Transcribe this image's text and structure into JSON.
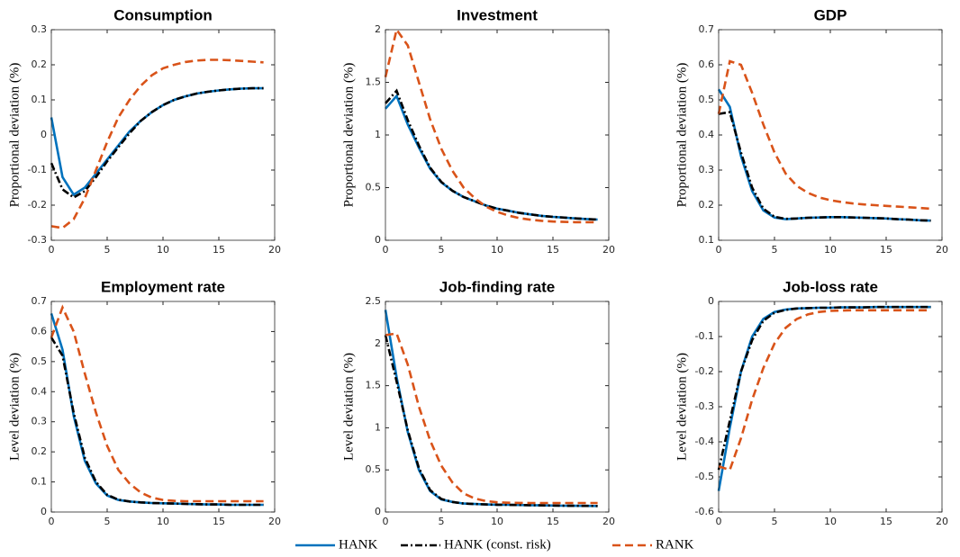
{
  "chart_data": [
    {
      "type": "line",
      "title": "Consumption",
      "ylabel": "Proportional deviation (%)",
      "x": [
        0,
        1,
        2,
        3,
        4,
        5,
        6,
        7,
        8,
        9,
        10,
        11,
        12,
        13,
        14,
        15,
        16,
        17,
        18,
        19
      ],
      "xlim": [
        0,
        20
      ],
      "xticks": [
        0,
        5,
        10,
        15,
        20
      ],
      "ylim": [
        -0.3,
        0.3
      ],
      "yticks": [
        -0.3,
        -0.2,
        -0.1,
        0,
        0.1,
        0.2,
        0.3
      ],
      "series": [
        {
          "name": "HANK",
          "color": "#0072bd",
          "dash": "solid",
          "values": [
            0.05,
            -0.12,
            -0.17,
            -0.15,
            -0.11,
            -0.07,
            -0.03,
            0.01,
            0.04,
            0.065,
            0.085,
            0.1,
            0.11,
            0.118,
            0.123,
            0.127,
            0.13,
            0.132,
            0.133,
            0.133
          ]
        },
        {
          "name": "HANK (const. risk)",
          "color": "#000000",
          "dash": "dashdot",
          "values": [
            -0.08,
            -0.155,
            -0.178,
            -0.16,
            -0.12,
            -0.075,
            -0.035,
            0.005,
            0.04,
            0.065,
            0.085,
            0.1,
            0.11,
            0.118,
            0.123,
            0.127,
            0.13,
            0.132,
            0.133,
            0.133
          ]
        },
        {
          "name": "RANK",
          "color": "#d95319",
          "dash": "dashed",
          "values": [
            -0.26,
            -0.265,
            -0.24,
            -0.18,
            -0.1,
            -0.02,
            0.05,
            0.1,
            0.14,
            0.17,
            0.19,
            0.2,
            0.208,
            0.212,
            0.214,
            0.214,
            0.213,
            0.211,
            0.209,
            0.207
          ]
        }
      ]
    },
    {
      "type": "line",
      "title": "Investment",
      "ylabel": "Proportional deviation (%)",
      "x": [
        0,
        1,
        2,
        3,
        4,
        5,
        6,
        7,
        8,
        9,
        10,
        11,
        12,
        13,
        14,
        15,
        16,
        17,
        18,
        19
      ],
      "xlim": [
        0,
        20
      ],
      "xticks": [
        0,
        5,
        10,
        15,
        20
      ],
      "ylim": [
        0,
        2
      ],
      "yticks": [
        0,
        0.5,
        1,
        1.5,
        2
      ],
      "series": [
        {
          "name": "HANK",
          "color": "#0072bd",
          "dash": "solid",
          "values": [
            1.25,
            1.37,
            1.1,
            0.88,
            0.68,
            0.55,
            0.47,
            0.41,
            0.37,
            0.33,
            0.3,
            0.28,
            0.26,
            0.245,
            0.232,
            0.222,
            0.215,
            0.208,
            0.202,
            0.197
          ]
        },
        {
          "name": "HANK (const. risk)",
          "color": "#000000",
          "dash": "dashdot",
          "values": [
            1.3,
            1.42,
            1.14,
            0.9,
            0.69,
            0.555,
            0.47,
            0.41,
            0.37,
            0.33,
            0.3,
            0.28,
            0.26,
            0.245,
            0.232,
            0.222,
            0.215,
            0.208,
            0.202,
            0.197
          ]
        },
        {
          "name": "RANK",
          "color": "#d95319",
          "dash": "dashed",
          "values": [
            1.55,
            2.0,
            1.85,
            1.5,
            1.15,
            0.87,
            0.66,
            0.5,
            0.4,
            0.32,
            0.27,
            0.235,
            0.21,
            0.195,
            0.185,
            0.178,
            0.174,
            0.172,
            0.172,
            0.172
          ]
        }
      ]
    },
    {
      "type": "line",
      "title": "GDP",
      "ylabel": "Proportional deviation (%)",
      "x": [
        0,
        1,
        2,
        3,
        4,
        5,
        6,
        7,
        8,
        9,
        10,
        11,
        12,
        13,
        14,
        15,
        16,
        17,
        18,
        19
      ],
      "xlim": [
        0,
        20
      ],
      "xticks": [
        0,
        5,
        10,
        15,
        20
      ],
      "ylim": [
        0.1,
        0.7
      ],
      "yticks": [
        0.1,
        0.2,
        0.3,
        0.4,
        0.5,
        0.6,
        0.7
      ],
      "series": [
        {
          "name": "HANK",
          "color": "#0072bd",
          "dash": "solid",
          "values": [
            0.53,
            0.48,
            0.34,
            0.24,
            0.185,
            0.165,
            0.16,
            0.162,
            0.164,
            0.165,
            0.166,
            0.166,
            0.165,
            0.164,
            0.163,
            0.162,
            0.16,
            0.159,
            0.157,
            0.156
          ]
        },
        {
          "name": "HANK (const. risk)",
          "color": "#000000",
          "dash": "dashdot",
          "values": [
            0.46,
            0.465,
            0.35,
            0.25,
            0.19,
            0.167,
            0.161,
            0.162,
            0.164,
            0.165,
            0.166,
            0.166,
            0.165,
            0.164,
            0.163,
            0.162,
            0.16,
            0.159,
            0.157,
            0.156
          ]
        },
        {
          "name": "RANK",
          "color": "#d95319",
          "dash": "dashed",
          "values": [
            0.46,
            0.61,
            0.6,
            0.52,
            0.43,
            0.35,
            0.29,
            0.255,
            0.235,
            0.222,
            0.214,
            0.209,
            0.205,
            0.202,
            0.2,
            0.198,
            0.196,
            0.194,
            0.192,
            0.19
          ]
        }
      ]
    },
    {
      "type": "line",
      "title": "Employment rate",
      "ylabel": "Level deviation (%)",
      "x": [
        0,
        1,
        2,
        3,
        4,
        5,
        6,
        7,
        8,
        9,
        10,
        11,
        12,
        13,
        14,
        15,
        16,
        17,
        18,
        19
      ],
      "xlim": [
        0,
        20
      ],
      "xticks": [
        0,
        5,
        10,
        15,
        20
      ],
      "ylim": [
        0,
        0.7
      ],
      "yticks": [
        0,
        0.1,
        0.2,
        0.3,
        0.4,
        0.5,
        0.6,
        0.7
      ],
      "series": [
        {
          "name": "HANK",
          "color": "#0072bd",
          "dash": "solid",
          "values": [
            0.66,
            0.54,
            0.32,
            0.17,
            0.095,
            0.055,
            0.04,
            0.035,
            0.032,
            0.03,
            0.029,
            0.028,
            0.027,
            0.026,
            0.025,
            0.025,
            0.024,
            0.024,
            0.024,
            0.024
          ]
        },
        {
          "name": "HANK (const. risk)",
          "color": "#000000",
          "dash": "dashdot",
          "values": [
            0.58,
            0.52,
            0.33,
            0.18,
            0.1,
            0.057,
            0.041,
            0.035,
            0.032,
            0.03,
            0.029,
            0.028,
            0.027,
            0.026,
            0.025,
            0.025,
            0.024,
            0.024,
            0.024,
            0.024
          ]
        },
        {
          "name": "RANK",
          "color": "#d95319",
          "dash": "dashed",
          "values": [
            0.58,
            0.68,
            0.6,
            0.46,
            0.33,
            0.22,
            0.14,
            0.095,
            0.065,
            0.048,
            0.04,
            0.037,
            0.036,
            0.036,
            0.036,
            0.036,
            0.036,
            0.036,
            0.036,
            0.036
          ]
        }
      ]
    },
    {
      "type": "line",
      "title": "Job-finding rate",
      "ylabel": "Level deviation (%)",
      "x": [
        0,
        1,
        2,
        3,
        4,
        5,
        6,
        7,
        8,
        9,
        10,
        11,
        12,
        13,
        14,
        15,
        16,
        17,
        18,
        19
      ],
      "xlim": [
        0,
        20
      ],
      "xticks": [
        0,
        5,
        10,
        15,
        20
      ],
      "ylim": [
        0,
        2.5
      ],
      "yticks": [
        0,
        0.5,
        1,
        1.5,
        2,
        2.5
      ],
      "series": [
        {
          "name": "HANK",
          "color": "#0072bd",
          "dash": "solid",
          "values": [
            2.4,
            1.6,
            0.95,
            0.5,
            0.25,
            0.15,
            0.12,
            0.1,
            0.095,
            0.09,
            0.087,
            0.085,
            0.083,
            0.081,
            0.079,
            0.077,
            0.075,
            0.074,
            0.073,
            0.072
          ]
        },
        {
          "name": "HANK (const. risk)",
          "color": "#000000",
          "dash": "dashdot",
          "values": [
            2.1,
            1.55,
            0.97,
            0.52,
            0.26,
            0.155,
            0.12,
            0.1,
            0.095,
            0.09,
            0.087,
            0.085,
            0.083,
            0.081,
            0.079,
            0.077,
            0.075,
            0.074,
            0.073,
            0.072
          ]
        },
        {
          "name": "RANK",
          "color": "#d95319",
          "dash": "dashed",
          "values": [
            2.1,
            2.12,
            1.75,
            1.25,
            0.85,
            0.55,
            0.35,
            0.22,
            0.16,
            0.13,
            0.115,
            0.11,
            0.108,
            0.107,
            0.107,
            0.107,
            0.107,
            0.107,
            0.107,
            0.107
          ]
        }
      ]
    },
    {
      "type": "line",
      "title": "Job-loss rate",
      "ylabel": "Level deviation (%)",
      "x": [
        0,
        1,
        2,
        3,
        4,
        5,
        6,
        7,
        8,
        9,
        10,
        11,
        12,
        13,
        14,
        15,
        16,
        17,
        18,
        19
      ],
      "xlim": [
        0,
        20
      ],
      "xticks": [
        0,
        5,
        10,
        15,
        20
      ],
      "ylim": [
        -0.6,
        0
      ],
      "yticks": [
        -0.6,
        -0.5,
        -0.4,
        -0.3,
        -0.2,
        -0.1,
        0
      ],
      "series": [
        {
          "name": "HANK",
          "color": "#0072bd",
          "dash": "solid",
          "values": [
            -0.54,
            -0.36,
            -0.2,
            -0.1,
            -0.05,
            -0.03,
            -0.023,
            -0.02,
            -0.019,
            -0.018,
            -0.018,
            -0.017,
            -0.017,
            -0.017,
            -0.016,
            -0.016,
            -0.016,
            -0.016,
            -0.016,
            -0.016
          ]
        },
        {
          "name": "HANK (const. risk)",
          "color": "#000000",
          "dash": "dashdot",
          "values": [
            -0.48,
            -0.34,
            -0.2,
            -0.11,
            -0.055,
            -0.032,
            -0.024,
            -0.02,
            -0.019,
            -0.018,
            -0.018,
            -0.017,
            -0.017,
            -0.017,
            -0.016,
            -0.016,
            -0.016,
            -0.016,
            -0.016,
            -0.016
          ]
        },
        {
          "name": "RANK",
          "color": "#d95319",
          "dash": "dashed",
          "values": [
            -0.47,
            -0.48,
            -0.39,
            -0.28,
            -0.19,
            -0.12,
            -0.075,
            -0.05,
            -0.037,
            -0.03,
            -0.027,
            -0.026,
            -0.025,
            -0.025,
            -0.025,
            -0.025,
            -0.025,
            -0.025,
            -0.025,
            -0.025
          ]
        }
      ]
    }
  ]
}
